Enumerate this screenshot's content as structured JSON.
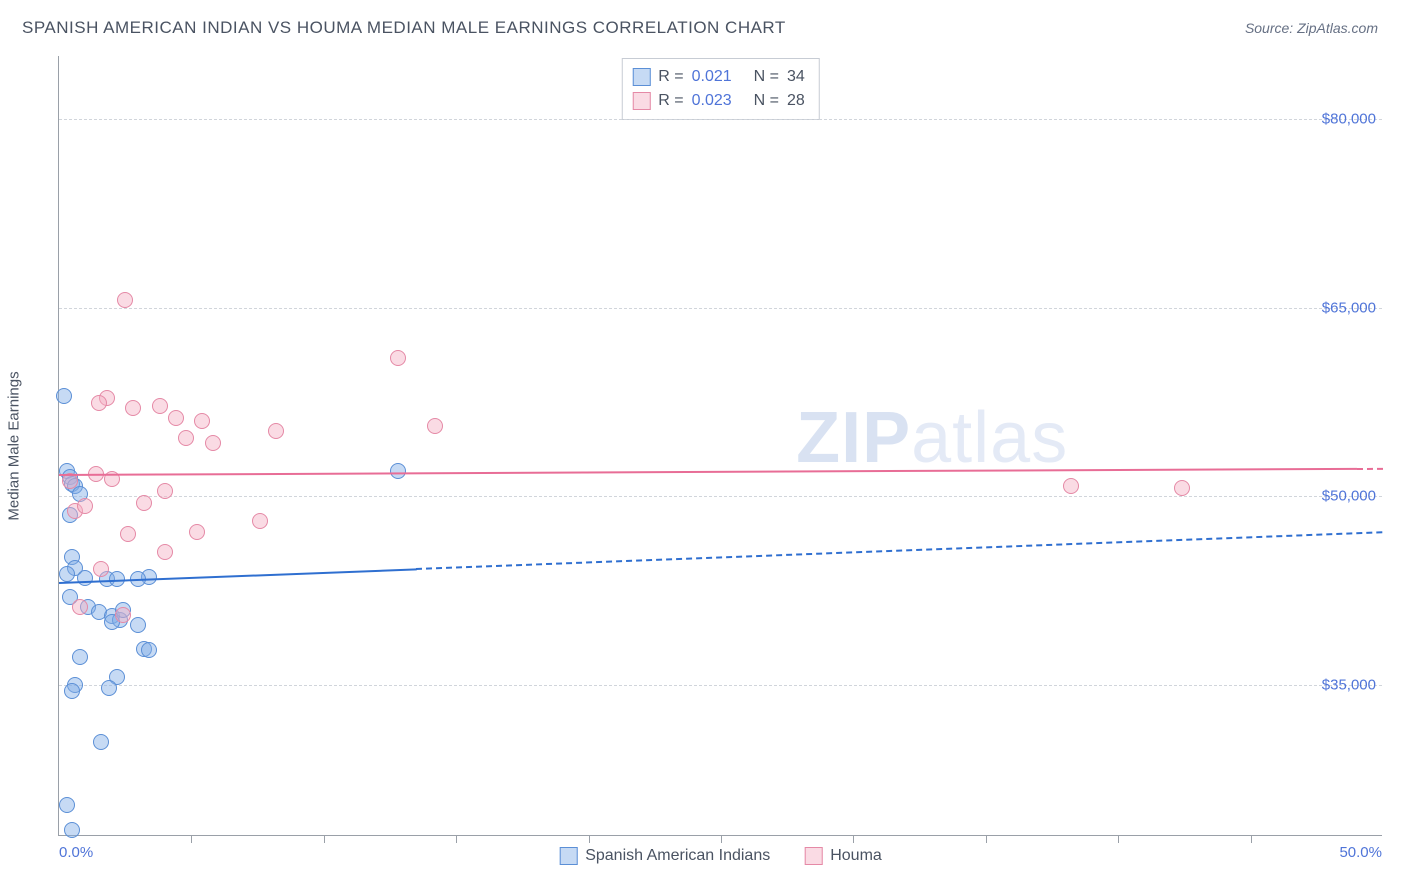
{
  "header": {
    "title": "SPANISH AMERICAN INDIAN VS HOUMA MEDIAN MALE EARNINGS CORRELATION CHART",
    "source": "Source: ZipAtlas.com"
  },
  "chart": {
    "type": "scatter",
    "ylabel": "Median Male Earnings",
    "xlim": [
      0,
      50
    ],
    "ylim": [
      23000,
      85000
    ],
    "x_min_label": "0.0%",
    "x_max_label": "50.0%",
    "ytick_values": [
      35000,
      50000,
      65000,
      80000
    ],
    "ytick_labels": [
      "$35,000",
      "$50,000",
      "$65,000",
      "$80,000"
    ],
    "xtick_positions": [
      5,
      10,
      15,
      20,
      25,
      30,
      35,
      40,
      45
    ],
    "background_color": "#ffffff",
    "grid_color": "#d1d5db",
    "grid_dash": true,
    "axis_color": "#9aa0a8",
    "marker_radius": 8,
    "marker_stroke_width": 1.2,
    "watermark": {
      "bold": "ZIP",
      "rest": "atlas"
    },
    "series": [
      {
        "name": "Spanish American Indians",
        "color_fill": "rgba(128,174,231,0.45)",
        "color_stroke": "#5b8fd6",
        "points": [
          [
            0.2,
            58000
          ],
          [
            0.3,
            52000
          ],
          [
            0.4,
            51500
          ],
          [
            0.5,
            51000
          ],
          [
            0.6,
            50800
          ],
          [
            0.8,
            50200
          ],
          [
            0.4,
            48500
          ],
          [
            0.5,
            45200
          ],
          [
            0.6,
            44300
          ],
          [
            0.3,
            43800
          ],
          [
            1.0,
            43500
          ],
          [
            1.8,
            43400
          ],
          [
            2.2,
            43400
          ],
          [
            3.4,
            43600
          ],
          [
            0.4,
            42000
          ],
          [
            1.1,
            41200
          ],
          [
            1.5,
            40800
          ],
          [
            2.0,
            40500
          ],
          [
            2.3,
            40200
          ],
          [
            2.0,
            40000
          ],
          [
            3.0,
            39800
          ],
          [
            3.2,
            37900
          ],
          [
            3.4,
            37800
          ],
          [
            0.8,
            37200
          ],
          [
            2.2,
            35600
          ],
          [
            0.6,
            35000
          ],
          [
            1.9,
            34800
          ],
          [
            0.5,
            34500
          ],
          [
            1.6,
            30500
          ],
          [
            0.3,
            25500
          ],
          [
            0.5,
            23500
          ],
          [
            12.8,
            52000
          ],
          [
            3.0,
            43400
          ],
          [
            2.4,
            41000
          ]
        ],
        "trend": {
          "y0": 43200,
          "y1": 47200,
          "color": "#2f6fd0",
          "width": 2.4,
          "solid_until_x": 13.5
        }
      },
      {
        "name": "Houma",
        "color_fill": "rgba(244,176,196,0.45)",
        "color_stroke": "#e589a6",
        "points": [
          [
            2.5,
            65600
          ],
          [
            12.8,
            61000
          ],
          [
            1.8,
            57800
          ],
          [
            1.5,
            57400
          ],
          [
            2.8,
            57000
          ],
          [
            3.8,
            57200
          ],
          [
            4.4,
            56200
          ],
          [
            5.4,
            56000
          ],
          [
            4.8,
            54600
          ],
          [
            5.8,
            54200
          ],
          [
            8.2,
            55200
          ],
          [
            14.2,
            55600
          ],
          [
            0.4,
            51200
          ],
          [
            1.4,
            51800
          ],
          [
            2.0,
            51400
          ],
          [
            4.0,
            50400
          ],
          [
            3.2,
            49500
          ],
          [
            0.6,
            48800
          ],
          [
            1.0,
            49200
          ],
          [
            5.2,
            47200
          ],
          [
            7.6,
            48000
          ],
          [
            2.6,
            47000
          ],
          [
            4.0,
            45600
          ],
          [
            1.6,
            44200
          ],
          [
            0.8,
            41200
          ],
          [
            2.4,
            40600
          ],
          [
            38.2,
            50800
          ],
          [
            42.4,
            50700
          ]
        ],
        "trend": {
          "y0": 51800,
          "y1": 52300,
          "color": "#e86d96",
          "width": 2.2,
          "solid_until_x": 49
        }
      }
    ],
    "legend_top": {
      "rows": [
        {
          "color_fill": "rgba(128,174,231,0.45)",
          "color_stroke": "#5b8fd6",
          "r_label": "R =",
          "r_val": "0.021",
          "n_label": "N =",
          "n_val": "34"
        },
        {
          "color_fill": "rgba(244,176,196,0.45)",
          "color_stroke": "#e589a6",
          "r_label": "R =",
          "r_val": "0.023",
          "n_label": "N =",
          "n_val": "28"
        }
      ]
    },
    "legend_bottom": [
      {
        "color_fill": "rgba(128,174,231,0.45)",
        "color_stroke": "#5b8fd6",
        "label": "Spanish American Indians"
      },
      {
        "color_fill": "rgba(244,176,196,0.45)",
        "color_stroke": "#e589a6",
        "label": "Houma"
      }
    ]
  }
}
